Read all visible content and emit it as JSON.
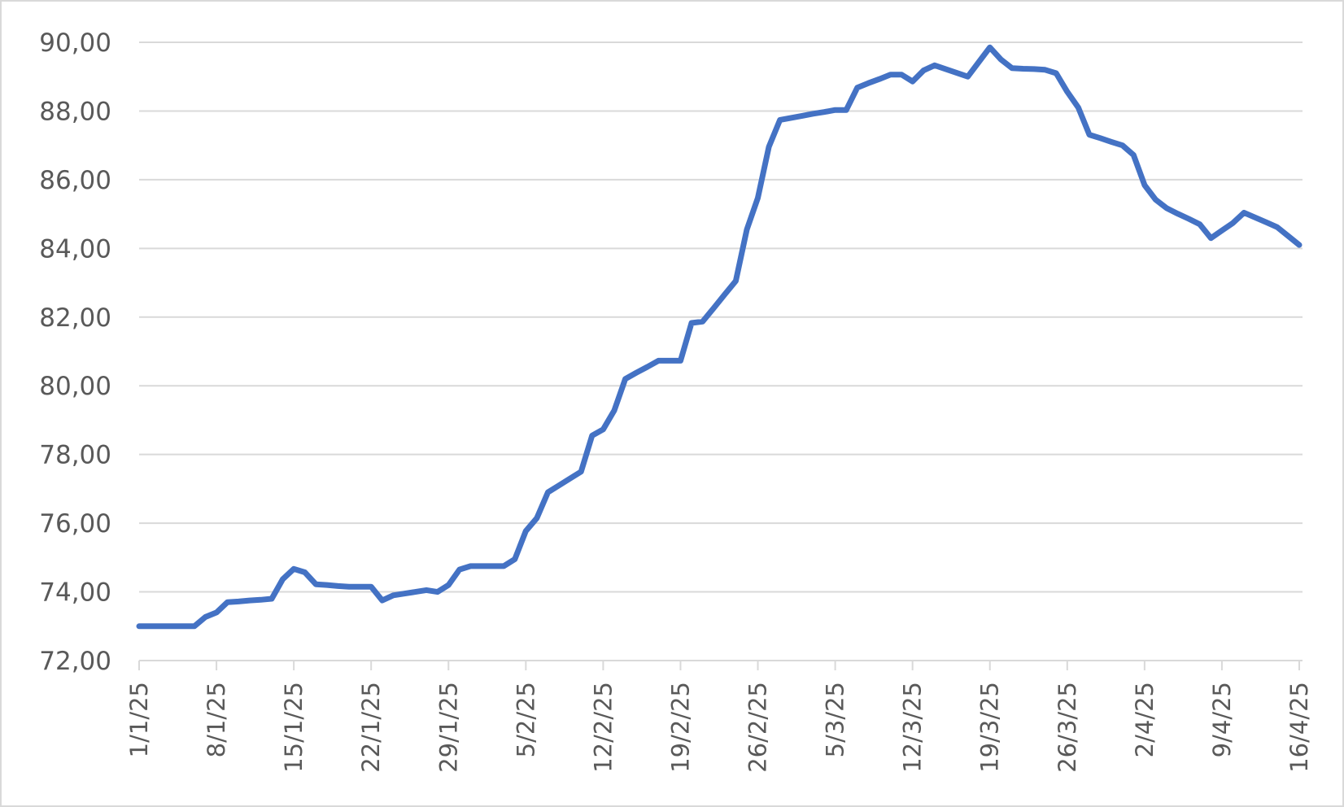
{
  "chart_data": {
    "type": "line",
    "categories": [
      "1/1/25",
      null,
      null,
      null,
      null,
      null,
      null,
      "8/1/25",
      null,
      null,
      null,
      null,
      null,
      null,
      "15/1/25",
      null,
      null,
      null,
      null,
      null,
      null,
      "22/1/25",
      null,
      null,
      null,
      null,
      null,
      null,
      "29/1/25",
      null,
      null,
      null,
      null,
      null,
      null,
      "5/2/25",
      null,
      null,
      null,
      null,
      null,
      null,
      "12/2/25",
      null,
      null,
      null,
      null,
      null,
      null,
      "19/2/25",
      null,
      null,
      null,
      null,
      null,
      null,
      "26/2/25",
      null,
      null,
      null,
      null,
      null,
      null,
      "5/3/25",
      null,
      null,
      null,
      null,
      null,
      null,
      "12/3/25",
      null,
      null,
      null,
      null,
      null,
      null,
      "19/3/25",
      null,
      null,
      null,
      null,
      null,
      null,
      "26/3/25",
      null,
      null,
      null,
      null,
      null,
      null,
      "2/4/25",
      null,
      null,
      null,
      null,
      null,
      null,
      "9/4/25",
      null,
      null,
      null,
      null,
      null,
      null,
      "16/4/25"
    ],
    "values": [
      73.0,
      73.0,
      73.0,
      73.0,
      73.0,
      73.0,
      73.27,
      73.4,
      73.7,
      73.72,
      73.75,
      73.77,
      73.8,
      74.37,
      74.67,
      74.57,
      74.22,
      74.2,
      74.17,
      74.15,
      74.15,
      74.15,
      73.75,
      73.9,
      73.95,
      74.0,
      74.05,
      74.0,
      74.2,
      74.65,
      74.75,
      74.75,
      74.75,
      74.75,
      74.95,
      75.77,
      76.15,
      76.9,
      77.1,
      77.3,
      77.5,
      78.55,
      78.73,
      79.28,
      80.2,
      80.38,
      80.55,
      80.73,
      80.73,
      80.73,
      81.83,
      81.87,
      82.26,
      82.66,
      83.05,
      84.55,
      85.47,
      86.96,
      87.74,
      87.8,
      87.86,
      87.92,
      87.97,
      88.03,
      88.03,
      88.68,
      88.81,
      88.93,
      89.06,
      89.06,
      88.86,
      89.18,
      89.33,
      89.22,
      89.11,
      89.0,
      89.43,
      89.85,
      89.5,
      89.25,
      89.23,
      89.22,
      89.2,
      89.1,
      88.56,
      88.1,
      87.31,
      87.21,
      87.1,
      87.0,
      86.72,
      85.84,
      85.42,
      85.17,
      85.01,
      84.86,
      84.7,
      84.3,
      84.52,
      84.74,
      85.04,
      84.9,
      84.76,
      84.62,
      84.36,
      84.1
    ],
    "color": "#4472c4",
    "ylim": [
      72,
      90
    ],
    "yticks": [
      {
        "value": 72,
        "label": "72,00"
      },
      {
        "value": 74,
        "label": "74,00"
      },
      {
        "value": 76,
        "label": "76,00"
      },
      {
        "value": 78,
        "label": "78,00"
      },
      {
        "value": 80,
        "label": "80,00"
      },
      {
        "value": 82,
        "label": "82,00"
      },
      {
        "value": 84,
        "label": "84,00"
      },
      {
        "value": 86,
        "label": "86,00"
      },
      {
        "value": 88,
        "label": "88,00"
      },
      {
        "value": 90,
        "label": "90,00"
      }
    ],
    "grid": true
  }
}
